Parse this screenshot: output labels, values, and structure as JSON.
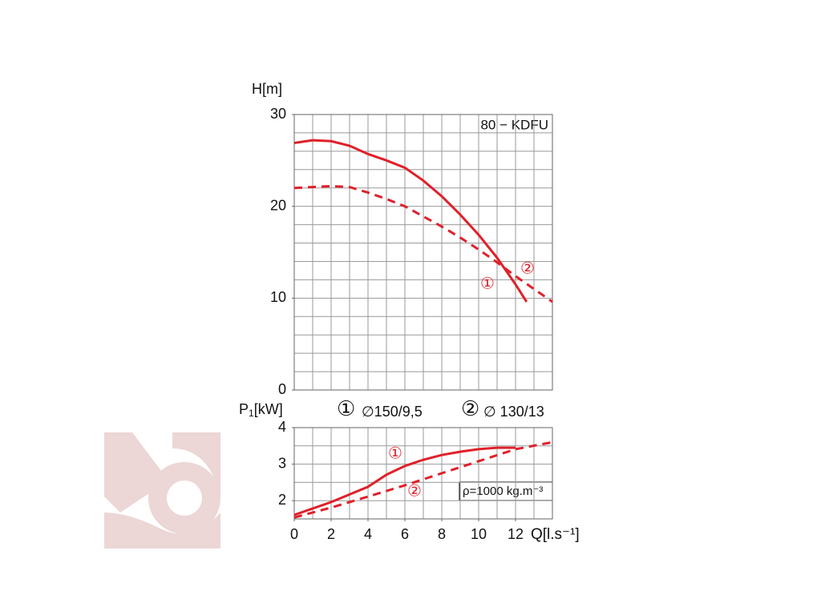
{
  "chart_data": [
    {
      "type": "line",
      "title": "80 − KDFU",
      "y_label": "H[m]",
      "xlim": [
        0,
        14
      ],
      "ylim": [
        0,
        30
      ],
      "yticks": [
        0,
        10,
        20,
        30
      ],
      "grid": true,
      "grid_x_step": 1,
      "grid_y_step": 2,
      "series": [
        {
          "name": "∅150/9,5",
          "marker": "①",
          "color": "#e0202a",
          "dash": false,
          "x": [
            0,
            1,
            2,
            3,
            4,
            5,
            6,
            7,
            8,
            9,
            10,
            11,
            12,
            12.6
          ],
          "values": [
            26.9,
            27.2,
            27.1,
            26.6,
            25.7,
            25.0,
            24.2,
            22.8,
            21.1,
            19.1,
            16.9,
            14.4,
            11.5,
            9.6
          ]
        },
        {
          "name": "∅ 130/13",
          "marker": "②",
          "color": "#e0202a",
          "dash": true,
          "x": [
            0,
            2,
            3,
            4,
            5,
            6,
            7,
            8,
            9,
            10,
            11,
            12,
            13,
            14
          ],
          "values": [
            22.0,
            22.2,
            22.1,
            21.5,
            20.8,
            20.0,
            18.9,
            17.8,
            16.6,
            15.3,
            13.9,
            12.4,
            11.0,
            9.6
          ]
        }
      ]
    },
    {
      "type": "line",
      "y_label": "P",
      "y_label_sub": "1",
      "y_label_unit": "[kW]",
      "x_label": "Q[l.s⁻¹]",
      "annotation": "ρ=1000 kg.m⁻³",
      "xlim": [
        0,
        14
      ],
      "xticks": [
        0,
        2,
        4,
        6,
        8,
        10,
        12
      ],
      "ylim": [
        1.5,
        4
      ],
      "yticks": [
        2,
        3,
        4
      ],
      "grid": true,
      "grid_x_step": 1,
      "grid_y_step": 0.5,
      "series": [
        {
          "name": "∅150/9,5",
          "marker": "①",
          "color": "#e0202a",
          "dash": false,
          "x": [
            0,
            2,
            4,
            5,
            6,
            7,
            8,
            9,
            10,
            11,
            12
          ],
          "values": [
            1.61,
            1.96,
            2.38,
            2.71,
            2.95,
            3.12,
            3.25,
            3.34,
            3.41,
            3.45,
            3.45
          ]
        },
        {
          "name": "∅ 130/13",
          "marker": "②",
          "color": "#e0202a",
          "dash": true,
          "x": [
            0,
            2,
            4,
            6,
            8,
            10,
            12,
            14
          ],
          "values": [
            1.54,
            1.81,
            2.11,
            2.42,
            2.75,
            3.08,
            3.41,
            3.6
          ]
        }
      ]
    }
  ]
}
